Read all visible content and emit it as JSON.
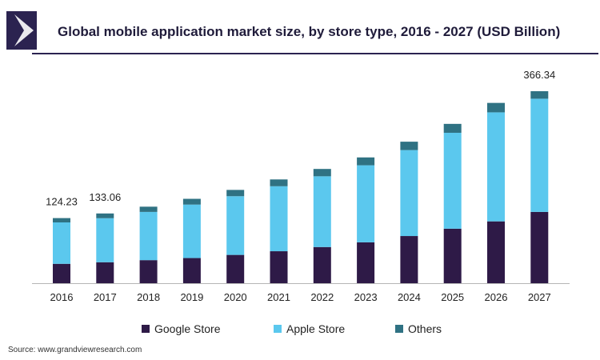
{
  "header": {
    "title": "Global mobile application market size, by store type, 2016 - 2027 (USD Billion)"
  },
  "colors": {
    "google": "#2e1a47",
    "apple": "#5bc8ee",
    "others": "#2f7283",
    "brand": "#2b2350"
  },
  "legend": {
    "google_label": "Google Store",
    "apple_label": "Apple Store",
    "others_label": "Others"
  },
  "footer": {
    "source": "Source: www.grandviewresearch.com"
  },
  "chart_data": {
    "type": "bar",
    "stacked": true,
    "title": "Global mobile application market size, by store type, 2016 - 2027 (USD Billion)",
    "categories": [
      "2016",
      "2017",
      "2018",
      "2019",
      "2020",
      "2021",
      "2022",
      "2023",
      "2024",
      "2025",
      "2026",
      "2027"
    ],
    "series": [
      {
        "name": "Google Store",
        "values": [
          37,
          40,
          44,
          48,
          54,
          61,
          69,
          78,
          90,
          104,
          118,
          136
        ]
      },
      {
        "name": "Apple Store",
        "values": [
          79,
          84,
          92,
          102,
          112,
          124,
          135,
          147,
          164,
          183,
          208,
          216
        ]
      },
      {
        "name": "Others",
        "values": [
          8.23,
          9.06,
          10,
          11,
          12,
          13,
          14,
          15,
          16,
          17,
          18,
          14.34
        ]
      }
    ],
    "data_labels": [
      {
        "category": "2016",
        "text": "124.23"
      },
      {
        "category": "2017",
        "text": "133.06"
      },
      {
        "category": "2027",
        "text": "366.34"
      }
    ],
    "xlabel": "",
    "ylabel": "",
    "ylim": [
      0,
      366.34
    ],
    "grid": false,
    "legend_position": "bottom"
  }
}
